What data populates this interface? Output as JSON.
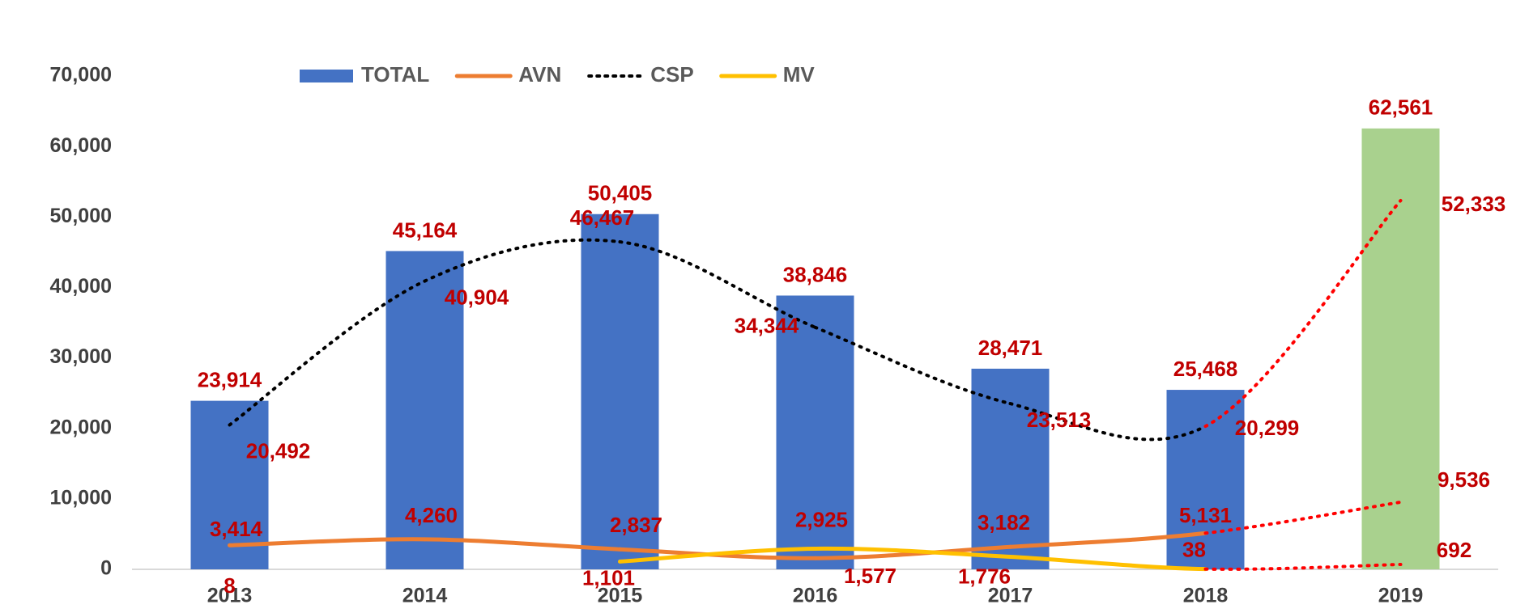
{
  "chart_data": {
    "type": "bar-line",
    "categories": [
      "2013",
      "2014",
      "2015",
      "2016",
      "2017",
      "2018",
      "2019"
    ],
    "series": [
      {
        "name": "TOTAL",
        "type": "bar",
        "colors": [
          "#4472c4",
          "#4472c4",
          "#4472c4",
          "#4472c4",
          "#4472c4",
          "#4472c4",
          "#a9d18e"
        ],
        "values": [
          23914,
          45164,
          50405,
          38846,
          28471,
          25468,
          62561
        ],
        "value_labels": [
          "23,914",
          "45,164",
          "50,405",
          "38,846",
          "28,471",
          "25,468",
          "62,561"
        ]
      },
      {
        "name": "AVN",
        "type": "line",
        "color": "#ed7d31",
        "dash": "solid",
        "segment_colors": [
          "#ed7d31",
          "#ed7d31",
          "#ed7d31",
          "#ed7d31",
          "#ed7d31",
          "#ff0000"
        ],
        "segment_styles": [
          "solid",
          "solid",
          "solid",
          "solid",
          "solid",
          "dotted"
        ],
        "values": [
          3414,
          4260,
          2837,
          1577,
          3182,
          5131,
          9536
        ],
        "value_labels": [
          "3,414",
          "4,260",
          "2,837",
          "1,577",
          "3,182",
          "5,131",
          "9,536"
        ]
      },
      {
        "name": "CSP",
        "type": "line",
        "color": "#000000",
        "dash": "dotted",
        "segment_colors": [
          "#000000",
          "#000000",
          "#000000",
          "#000000",
          "#000000",
          "#ff0000"
        ],
        "segment_styles": [
          "dotted",
          "dotted",
          "dotted",
          "dotted",
          "dotted",
          "dotted"
        ],
        "values": [
          20492,
          40904,
          46467,
          34344,
          23513,
          20299,
          52333
        ],
        "value_labels": [
          "20,492",
          "40,904",
          "46,467",
          "34,344",
          "23,513",
          "20,299",
          "52,333"
        ]
      },
      {
        "name": "MV",
        "type": "line",
        "color": "#ffc000",
        "dash": "solid",
        "segment_colors": [
          "#ffc000",
          "#ffc000",
          "#ffc000",
          "#ffc000",
          "#ffc000",
          "#ff0000"
        ],
        "segment_styles": [
          "solid",
          "solid",
          "solid",
          "solid",
          "solid",
          "dotted"
        ],
        "values": [
          8,
          null,
          1101,
          2925,
          1776,
          38,
          692
        ],
        "value_labels": [
          "8",
          null,
          "1,101",
          "2,925",
          "1,776",
          "38",
          "692"
        ]
      }
    ],
    "ylim": [
      0,
      70000
    ],
    "yticks": [
      0,
      {
        "value": 10000,
        "label": "10,000"
      },
      {
        "value": 20000,
        "label": "20,000"
      },
      {
        "value": 30000,
        "label": "30,000"
      },
      {
        "value": 40000,
        "label": "40,000"
      },
      {
        "value": 50000,
        "label": "50,000"
      },
      {
        "value": 60000,
        "label": "60,000"
      },
      {
        "value": 70000,
        "label": "70,000"
      }
    ],
    "grid": false,
    "legend": "top"
  }
}
